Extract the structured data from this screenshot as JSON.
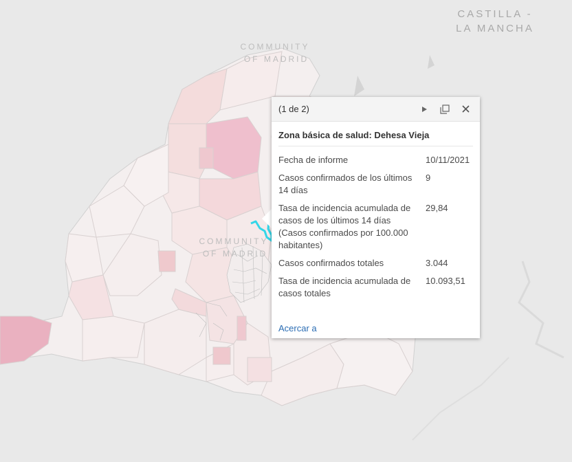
{
  "map": {
    "labels": {
      "region_top_line1": "CASTILLA -",
      "region_top_line2": "LA MANCHA",
      "community_top_line1": "COMMUNITY",
      "community_top_line2": "OF MADRID",
      "community_mid_line1": "COMMUNITY",
      "community_mid_line2": "OF MADRID"
    },
    "colors": {
      "background": "#e9e9e9",
      "base_area": "#f4efef",
      "light_pink": "#f4dcdc",
      "mid_pink": "#efc4cc",
      "strong_pink": "#eab3c3",
      "highlight": "#33d6e8"
    }
  },
  "popup": {
    "pager": "(1 de 2)",
    "icons": [
      "play-icon",
      "maximize-icon",
      "close-icon"
    ],
    "title": "Zona básica de salud: Dehesa Vieja",
    "fields": [
      {
        "label": "Fecha de informe",
        "value": "10/11/2021"
      },
      {
        "label": "Casos confirmados de los últimos 14 días",
        "value": "9"
      },
      {
        "label": "Tasa de incidencia acumulada de casos de los últimos 14 días (Casos confirmados por 100.000 habitantes)",
        "value": "29,84"
      },
      {
        "label": "Casos confirmados totales",
        "value": "3.044"
      },
      {
        "label": "Tasa de incidencia acumulada de casos totales",
        "value": "10.093,51"
      }
    ],
    "zoom_link": "Acercar a"
  }
}
